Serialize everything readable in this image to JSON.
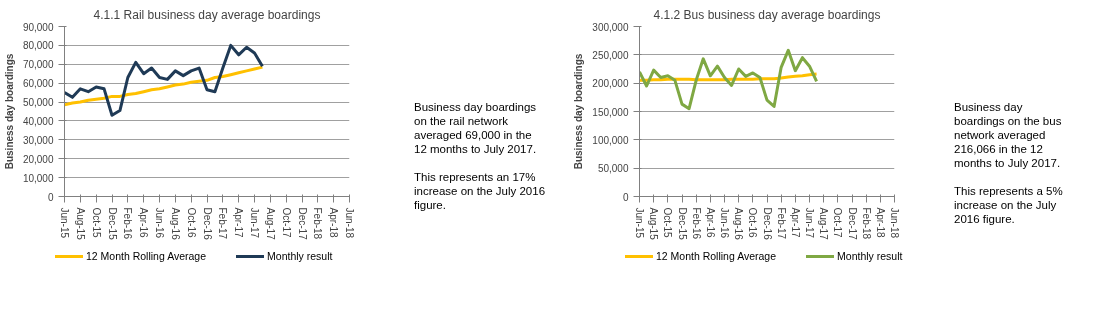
{
  "chart_data": [
    {
      "type": "line",
      "title": "4.1.1 Rail business day average boardings",
      "ylabel": "Business day boardings",
      "categories": [
        "Jun-15",
        null,
        "Aug-15",
        null,
        "Oct-15",
        null,
        "Dec-15",
        null,
        "Feb-16",
        null,
        "Apr-16",
        null,
        "Jun-16",
        null,
        "Aug-16",
        null,
        "Oct-16",
        null,
        "Dec-16",
        null,
        "Feb-17",
        null,
        "Apr-17",
        null,
        "Jun-17",
        null,
        "Aug-17",
        null,
        "Oct-17",
        null,
        "Dec-17",
        null,
        "Feb-18",
        null,
        "Apr-18",
        null,
        "Jun-18"
      ],
      "series": [
        {
          "name": "12 Month Rolling Average",
          "color": "#ffc000",
          "values": [
            48500,
            49500,
            50000,
            51000,
            51500,
            52000,
            53000,
            53000,
            54000,
            54500,
            55500,
            56500,
            57000,
            58000,
            59000,
            59500,
            60500,
            61000,
            61500,
            63000,
            63500,
            64500,
            65500,
            66500,
            67500,
            68500,
            null,
            null,
            null,
            null,
            null,
            null,
            null,
            null,
            null,
            null,
            null
          ]
        },
        {
          "name": "Monthly result",
          "color": "#1f3a56",
          "values": [
            55000,
            52500,
            57000,
            55500,
            58000,
            57000,
            43000,
            45500,
            63000,
            71000,
            65000,
            68000,
            63000,
            62000,
            66500,
            64000,
            66500,
            68000,
            56500,
            55500,
            68000,
            80000,
            75000,
            79000,
            76000,
            69000,
            null,
            null,
            null,
            null,
            null,
            null,
            null,
            null,
            null,
            null,
            null
          ]
        }
      ],
      "ylim": [
        0,
        90000
      ],
      "yticks": [
        {
          "value": 0,
          "label": "0"
        },
        {
          "value": 10000,
          "label": "10,000"
        },
        {
          "value": 20000,
          "label": "20,000"
        },
        {
          "value": 30000,
          "label": "30,000"
        },
        {
          "value": 40000,
          "label": "40,000"
        },
        {
          "value": 50000,
          "label": "50,000"
        },
        {
          "value": 60000,
          "label": "60,000"
        },
        {
          "value": 70000,
          "label": "70,000"
        },
        {
          "value": 80000,
          "label": "80,000"
        },
        {
          "value": 90000,
          "label": "90,000"
        }
      ],
      "grid": "y",
      "legend": "bottom",
      "marker": "none",
      "line_style": "solid"
    },
    {
      "type": "other",
      "annotations": [
        "Business day boardings on the rail network averaged 69,000 in the 12 months to July 2017.",
        "This represents an 17% increase on the July 2016 figure."
      ]
    },
    {
      "type": "line",
      "title": "4.1.2 Bus business day average boardings",
      "ylabel": "Business day boardings",
      "categories": [
        "Jun-15",
        null,
        "Aug-15",
        null,
        "Oct-15",
        null,
        "Dec-15",
        null,
        "Feb-16",
        null,
        "Apr-16",
        null,
        "Jun-16",
        null,
        "Aug-16",
        null,
        "Oct-16",
        null,
        "Dec-16",
        null,
        "Feb-17",
        null,
        "Apr-17",
        null,
        "Jun-17",
        null,
        "Aug-17",
        null,
        "Oct-17",
        null,
        "Dec-17",
        null,
        "Feb-18",
        null,
        "Apr-18",
        null,
        "Jun-18"
      ],
      "series": [
        {
          "name": "12 Month Rolling Average",
          "color": "#ffc000",
          "values": [
            205000,
            205000,
            206000,
            206000,
            207000,
            207000,
            207000,
            207000,
            206000,
            206000,
            206000,
            206000,
            206000,
            207000,
            207000,
            207000,
            207000,
            208000,
            208000,
            208000,
            209000,
            211000,
            212000,
            213000,
            215000,
            216000,
            null,
            null,
            null,
            null,
            null,
            null,
            null,
            null,
            null,
            null,
            null
          ]
        },
        {
          "name": "Monthly result",
          "color": "#7fa843",
          "values": [
            220000,
            195000,
            223000,
            210000,
            213000,
            205000,
            163000,
            155000,
            205000,
            243000,
            213000,
            230000,
            210000,
            196000,
            225000,
            212000,
            218000,
            210000,
            170000,
            159000,
            228000,
            258000,
            222000,
            245000,
            230000,
            203000,
            null,
            null,
            null,
            null,
            null,
            null,
            null,
            null,
            null,
            null,
            null
          ]
        }
      ],
      "ylim": [
        0,
        300000
      ],
      "yticks": [
        {
          "value": 0,
          "label": "0"
        },
        {
          "value": 50000,
          "label": "50,000"
        },
        {
          "value": 100000,
          "label": "100,000"
        },
        {
          "value": 150000,
          "label": "150,000"
        },
        {
          "value": 200000,
          "label": "200,000"
        },
        {
          "value": 250000,
          "label": "250,000"
        },
        {
          "value": 300000,
          "label": "300,000"
        }
      ],
      "grid": "y",
      "legend": "bottom",
      "marker": "none",
      "line_style": "solid"
    },
    {
      "type": "other",
      "annotations": [
        "Business day boardings on the bus network averaged 216,066 in the 12 months to July 2017.",
        "This represents a 5% increase on the July 2016 figure."
      ]
    }
  ]
}
